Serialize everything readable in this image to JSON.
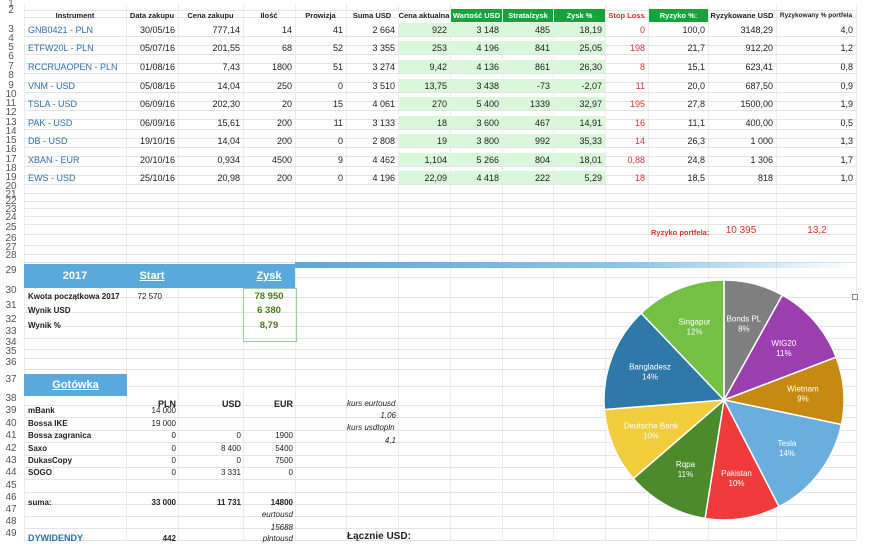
{
  "headers": [
    "Instrument",
    "Data zakupu",
    "Cena zakupu",
    "Ilość",
    "Prowizja",
    "Suma USD",
    "Cena aktualna",
    "Wartość USD",
    "Strata/zysk USD",
    "Zysk %",
    "Stop Loss",
    "Ryzyko %:",
    "Ryzykowane USD",
    "Ryzykowany % portfela"
  ],
  "instruments": [
    {
      "row": "3",
      "name": "GNB0421 - PLN",
      "date": "30/05/16",
      "price": "777,14",
      "qty": "14",
      "fee": "41",
      "sum": "2 664",
      "cur": "922",
      "val": "3 148",
      "pl": "485",
      "pct": "18,19",
      "sl": "0",
      "risk": "100,0",
      "ramt": "3148,29",
      "rpct": "4,0"
    },
    {
      "row": "5",
      "name": "ETFW20L - PLN",
      "date": "05/07/16",
      "price": "201,55",
      "qty": "68",
      "fee": "52",
      "sum": "3 355",
      "cur": "253",
      "val": "4 196",
      "pl": "841",
      "pct": "25,05",
      "sl": "198",
      "risk": "21,7",
      "ramt": "912,20",
      "rpct": "1,2"
    },
    {
      "row": "7",
      "name": "RCCRUAOPEN - PLN",
      "date": "01/08/16",
      "price": "7,43",
      "qty": "1800",
      "fee": "51",
      "sum": "3 274",
      "cur": "9,42",
      "val": "4 136",
      "pl": "861",
      "pct": "26,30",
      "sl": "8",
      "risk": "15,1",
      "ramt": "623,41",
      "rpct": "0,8"
    },
    {
      "row": "9",
      "name": "VNM - USD",
      "date": "05/08/16",
      "price": "14,04",
      "qty": "250",
      "fee": "0",
      "sum": "3 510",
      "cur": "13,75",
      "val": "3 438",
      "pl": "-73",
      "pct": "-2,07",
      "sl": "11",
      "risk": "20,0",
      "ramt": "687,50",
      "rpct": "0,9"
    },
    {
      "row": "11",
      "name": "TSLA - USD",
      "date": "06/09/16",
      "price": "202,30",
      "qty": "20",
      "fee": "15",
      "sum": "4 061",
      "cur": "270",
      "val": "5 400",
      "pl": "1339",
      "pct": "32,97",
      "sl": "195",
      "risk": "27,8",
      "ramt": "1500,00",
      "rpct": "1,9"
    },
    {
      "row": "13",
      "name": "PAK - USD",
      "date": "06/09/16",
      "price": "15,61",
      "qty": "200",
      "fee": "11",
      "sum": "3 133",
      "cur": "18",
      "val": "3 600",
      "pl": "467",
      "pct": "14,91",
      "sl": "16",
      "risk": "11,1",
      "ramt": "400,00",
      "rpct": "0,5"
    },
    {
      "row": "15",
      "name": "DB - USD",
      "date": "19/10/16",
      "price": "14,04",
      "qty": "200",
      "fee": "0",
      "sum": "2 808",
      "cur": "19",
      "val": "3 800",
      "pl": "992",
      "pct": "35,33",
      "sl": "14",
      "risk": "26,3",
      "ramt": "1 000",
      "rpct": "1,3"
    },
    {
      "row": "17",
      "name": "XBAN - EUR",
      "date": "20/10/16",
      "price": "0,934",
      "qty": "4500",
      "fee": "9",
      "sum": "4 462",
      "cur": "1,104",
      "val": "5 266",
      "pl": "804",
      "pct": "18,01",
      "sl": "0,88",
      "risk": "24,8",
      "ramt": "1 306",
      "rpct": "1,7"
    },
    {
      "row": "19",
      "name": "EWS - USD",
      "date": "25/10/16",
      "price": "20,98",
      "qty": "200",
      "fee": "0",
      "sum": "4 196",
      "cur": "22,09",
      "val": "4 418",
      "pl": "222",
      "pct": "5,29",
      "sl": "18",
      "risk": "18,5",
      "ramt": "818",
      "rpct": "1,0"
    }
  ],
  "portfolio_risk": {
    "label": "Ryzyko portfela:",
    "amount": "10 395",
    "pct": "13,2"
  },
  "year_box": {
    "year": "2017",
    "start": "Start",
    "zysk": "Zysk"
  },
  "year_rows": [
    {
      "label": "Kwota początkowa 2017",
      "start": "72 570",
      "zysk": "78 950"
    },
    {
      "label": "Wynik USD",
      "start": "",
      "zysk": "6 380"
    },
    {
      "label": "Wynik %",
      "start": "",
      "zysk": "8,79"
    }
  ],
  "cash": {
    "title": "Gotówka",
    "cols": [
      "PLN",
      "USD",
      "EUR"
    ],
    "rows": [
      {
        "name": "mBank",
        "pln": "14 000",
        "usd": "",
        "eur": ""
      },
      {
        "name": "Bossa IKE",
        "pln": "19 000",
        "usd": "",
        "eur": ""
      },
      {
        "name": "Bossa zagranica",
        "pln": "0",
        "usd": "0",
        "eur": "1900"
      },
      {
        "name": "Saxo",
        "pln": "0",
        "usd": "8 400",
        "eur": "5400"
      },
      {
        "name": "DukasCopy",
        "pln": "0",
        "usd": "0",
        "eur": "7500"
      },
      {
        "name": "SOGO",
        "pln": "0",
        "usd": "3 331",
        "eur": "0"
      }
    ],
    "sum": {
      "label": "suma:",
      "pln": "33 000",
      "usd": "11 731",
      "eur": "14800"
    },
    "eurtousd_label": "eurtousd",
    "eurtousd_val": "15688",
    "kurs_eur_label": "kurs eurtousd",
    "kurs_eur": "1,06",
    "kurs_pln_label": "kurs usdtopln",
    "kurs_pln": "4,1",
    "row51_label": "DYWIDENDY",
    "row51_val": "442",
    "row51_italic": "plntousd",
    "row51_total": "Łącznie USD:"
  },
  "chart_data": {
    "type": "pie",
    "slices": [
      {
        "label": "Bonds PL",
        "pct": "8%",
        "value": 8,
        "color": "#7f7f7f"
      },
      {
        "label": "WIG20",
        "pct": "11%",
        "value": 11,
        "color": "#9b3fb0"
      },
      {
        "label": "Wietnam",
        "pct": "9%",
        "value": 9,
        "color": "#c68a12"
      },
      {
        "label": "Tesla",
        "pct": "14%",
        "value": 14,
        "color": "#6aaede"
      },
      {
        "label": "Pakistan",
        "pct": "10%",
        "value": 10,
        "color": "#ef3b3b"
      },
      {
        "label": "Rqpa",
        "pct": "11%",
        "value": 11,
        "color": "#4d8a2c"
      },
      {
        "label": "Deutsche Bank",
        "pct": "10%",
        "value": 10,
        "color": "#f1cc3c"
      },
      {
        "label": "Bangladesz",
        "pct": "14%",
        "value": 14,
        "color": "#2f79a8"
      },
      {
        "label": "Singapur",
        "pct": "12%",
        "value": 12,
        "color": "#74c045"
      }
    ]
  }
}
